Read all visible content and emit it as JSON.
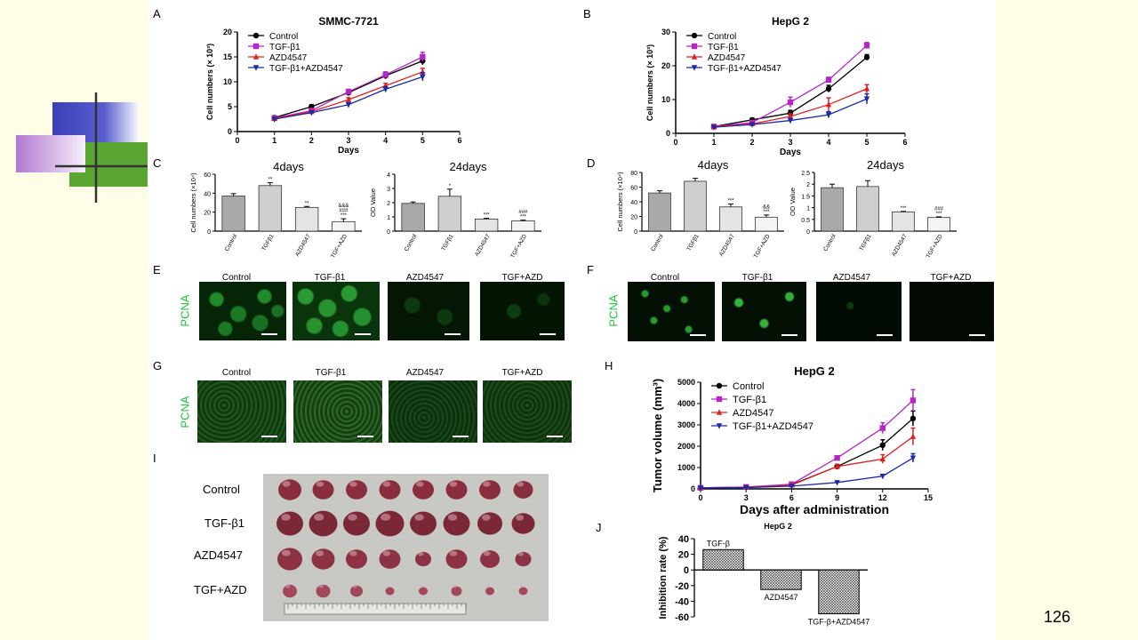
{
  "page_number": "126",
  "panel_letters": {
    "A": "A",
    "B": "B",
    "C": "C",
    "D": "D",
    "E": "E",
    "F": "F",
    "G": "G",
    "H": "H",
    "I": "I",
    "J": "J"
  },
  "micro_titles": {
    "control": "Control",
    "tgf": "TGF-β1",
    "azd": "AZD4547",
    "combo": "TGF+AZD"
  },
  "pcna": "PCNA",
  "tumor_rows": [
    "Control",
    "TGF-β1",
    "AZD4547",
    "TGF+AZD"
  ],
  "colors": {
    "control": "#000000",
    "tgf": "#b526c8",
    "azd": "#e02020",
    "combo": "#1a2aa8",
    "pcna": "#22c33a"
  },
  "chart_data": [
    {
      "id": "A",
      "type": "line",
      "title": "SMMC-7721",
      "xlabel": "Days",
      "ylabel": "Cell numbers (× 10³)",
      "xlim": [
        0,
        6
      ],
      "ylim": [
        0,
        20
      ],
      "xticks": [
        0,
        1,
        2,
        3,
        4,
        5,
        6
      ],
      "yticks": [
        0,
        5,
        10,
        15,
        20
      ],
      "legend": "top-left",
      "x": [
        1,
        2,
        3,
        4,
        5
      ],
      "series": [
        {
          "name": "Control",
          "color": "#000000",
          "marker": "circle",
          "values": [
            2.8,
            5.0,
            7.8,
            11.2,
            14.2
          ],
          "err": [
            0.3,
            0.4,
            0.5,
            0.6,
            0.8
          ]
        },
        {
          "name": "TGF-β1",
          "color": "#b526c8",
          "marker": "square",
          "values": [
            2.7,
            4.2,
            8.0,
            11.4,
            15.0
          ],
          "err": [
            0.3,
            0.4,
            0.5,
            0.6,
            0.9
          ]
        },
        {
          "name": "AZD4547",
          "color": "#e02020",
          "marker": "triangle",
          "values": [
            2.6,
            4.0,
            6.4,
            9.2,
            12.0
          ],
          "err": [
            0.3,
            0.3,
            0.4,
            0.5,
            0.7
          ]
        },
        {
          "name": "TGF-β1+AZD4547",
          "color": "#1a2aa8",
          "marker": "triangle-down",
          "values": [
            2.5,
            3.8,
            5.4,
            8.5,
            11.0
          ],
          "err": [
            0.3,
            0.3,
            0.4,
            0.5,
            0.8
          ]
        }
      ]
    },
    {
      "id": "B",
      "type": "line",
      "title": "HepG 2",
      "xlabel": "Days",
      "ylabel": "Cell numbers (× 10³)",
      "xlim": [
        0,
        6
      ],
      "ylim": [
        0,
        30
      ],
      "xticks": [
        0,
        1,
        2,
        3,
        4,
        5,
        6
      ],
      "yticks": [
        0,
        10,
        20,
        30
      ],
      "legend": "top-left",
      "x": [
        1,
        2,
        3,
        4,
        5
      ],
      "series": [
        {
          "name": "Control",
          "color": "#000000",
          "marker": "circle",
          "values": [
            2.0,
            4.0,
            6.0,
            13.2,
            22.5
          ],
          "err": [
            0.3,
            0.5,
            0.8,
            1.0,
            0.8
          ]
        },
        {
          "name": "TGF-β1",
          "color": "#b526c8",
          "marker": "square",
          "values": [
            2.0,
            3.2,
            9.2,
            15.8,
            26.0
          ],
          "err": [
            0.3,
            0.4,
            1.5,
            0.8,
            0.9
          ]
        },
        {
          "name": "AZD4547",
          "color": "#e02020",
          "marker": "triangle",
          "values": [
            2.0,
            2.8,
            5.0,
            8.5,
            13.2
          ],
          "err": [
            0.3,
            0.4,
            0.8,
            2.0,
            1.2
          ]
        },
        {
          "name": "TGF-β1+AZD4547",
          "color": "#1a2aa8",
          "marker": "triangle-down",
          "values": [
            1.8,
            2.6,
            3.8,
            5.5,
            10.2
          ],
          "err": [
            0.3,
            0.4,
            0.6,
            0.9,
            1.5
          ]
        }
      ]
    },
    {
      "id": "C1",
      "type": "bar",
      "title": "4days",
      "ylabel": "Cell numbers (×10⁴)",
      "ylim": [
        0,
        60
      ],
      "yticks": [
        0,
        20,
        40,
        60
      ],
      "categories": [
        "Control",
        "TGFβ1",
        "AZD4547",
        "TGF+AZD"
      ],
      "values": [
        37,
        48,
        25,
        10
      ],
      "err": [
        2.5,
        3,
        1,
        3
      ],
      "annotations": [
        "",
        "**",
        "**",
        "&&&\n###\n***"
      ]
    },
    {
      "id": "C2",
      "type": "bar",
      "title": "24days",
      "ylabel": "OD Value",
      "ylim": [
        0,
        4
      ],
      "yticks": [
        0,
        1,
        2,
        3,
        4
      ],
      "categories": [
        "Control",
        "TGFβ1",
        "AZD4547",
        "TGF+AZD"
      ],
      "values": [
        1.95,
        2.45,
        0.85,
        0.72
      ],
      "err": [
        0.1,
        0.5,
        0.05,
        0.05
      ],
      "annotations": [
        "",
        "*",
        "***",
        "###\n***"
      ]
    },
    {
      "id": "D1",
      "type": "bar",
      "title": "4days",
      "ylabel": "Cell numbers (×10⁴)",
      "ylim": [
        0,
        80
      ],
      "yticks": [
        0,
        20,
        40,
        60,
        80
      ],
      "categories": [
        "Control",
        "TGFβ1",
        "AZD4547",
        "TGF+AZD"
      ],
      "values": [
        52,
        68,
        33,
        19
      ],
      "err": [
        3,
        4,
        4,
        3
      ],
      "annotations": [
        "",
        "",
        "***",
        "&&\n***"
      ]
    },
    {
      "id": "D2",
      "type": "bar",
      "title": "24days",
      "ylabel": "OD Value",
      "ylim": [
        0,
        2.5
      ],
      "yticks": [
        0,
        0.5,
        1.0,
        1.5,
        2.0,
        2.5
      ],
      "categories": [
        "Control",
        "TGFβ1",
        "AZD4547",
        "TGF+AZD"
      ],
      "values": [
        1.85,
        1.9,
        0.82,
        0.58
      ],
      "err": [
        0.15,
        0.25,
        0.02,
        0.03
      ],
      "annotations": [
        "",
        "",
        "***",
        "###\n***"
      ]
    },
    {
      "id": "H",
      "type": "line",
      "title": "HepG 2",
      "xlabel": "Days after administration",
      "ylabel": "Tumor volume (mm³)",
      "xlim": [
        0,
        15
      ],
      "ylim": [
        0,
        5000
      ],
      "xticks": [
        0,
        3,
        6,
        9,
        12,
        15
      ],
      "yticks": [
        0,
        1000,
        2000,
        3000,
        4000,
        5000
      ],
      "legend": "top-left",
      "x": [
        0,
        3,
        6,
        9,
        12,
        14
      ],
      "series": [
        {
          "name": "Control",
          "color": "#000000",
          "marker": "circle",
          "values": [
            50,
            80,
            200,
            1050,
            2050,
            3300
          ],
          "err": [
            20,
            20,
            30,
            100,
            250,
            350
          ]
        },
        {
          "name": "TGF-β1",
          "color": "#b526c8",
          "marker": "square",
          "values": [
            50,
            90,
            220,
            1450,
            2850,
            4150
          ],
          "err": [
            20,
            20,
            30,
            100,
            250,
            500
          ]
        },
        {
          "name": "AZD4547",
          "color": "#e02020",
          "marker": "triangle",
          "values": [
            50,
            70,
            180,
            1050,
            1400,
            2450
          ],
          "err": [
            20,
            20,
            30,
            100,
            200,
            400
          ]
        },
        {
          "name": "TGF-β1+AZD4547",
          "color": "#1a2aa8",
          "marker": "triangle-down",
          "values": [
            40,
            60,
            130,
            300,
            600,
            1450
          ],
          "err": [
            20,
            20,
            20,
            40,
            60,
            200
          ]
        }
      ]
    },
    {
      "id": "J",
      "type": "bar",
      "title": "HepG 2",
      "ylabel": "Inhibition rate (%)",
      "ylim": [
        -60,
        40
      ],
      "yticks": [
        40,
        20,
        0,
        -20,
        -40,
        -60
      ],
      "categories": [
        "TGF-β",
        "AZD4547",
        "TGF-β+AZD4547"
      ],
      "values": [
        26,
        -25,
        -56
      ]
    }
  ]
}
